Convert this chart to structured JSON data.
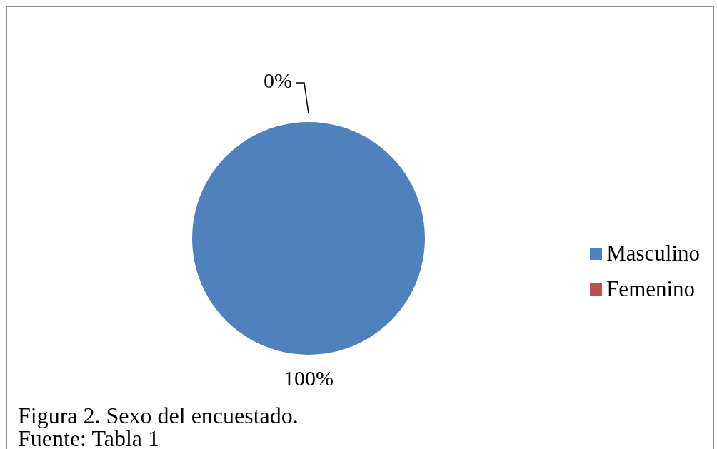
{
  "chart_data": {
    "type": "pie",
    "categories": [
      "Masculino",
      "Femenino"
    ],
    "values": [
      100,
      0
    ],
    "colors": [
      "#4f81bd",
      "#c0504d"
    ],
    "value_labels": [
      "100%",
      "0%"
    ],
    "legend": "right",
    "annotations": [
      "Figura 2. Sexo del encuestado.",
      "Fuente: Tabla 1"
    ]
  }
}
